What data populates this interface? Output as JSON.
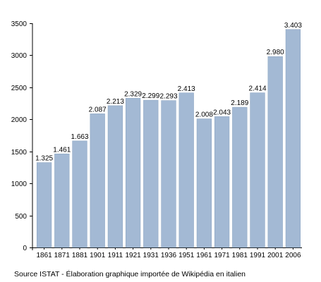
{
  "chart_data": {
    "type": "bar",
    "categories": [
      "1861",
      "1871",
      "1881",
      "1901",
      "1911",
      "1921",
      "1931",
      "1936",
      "1951",
      "1961",
      "1971",
      "1981",
      "1991",
      "2001",
      "2006"
    ],
    "values": [
      1325,
      1461,
      1663,
      2087,
      2213,
      2329,
      2299,
      2293,
      2413,
      2008,
      2043,
      2189,
      2414,
      2980,
      3403
    ],
    "value_labels": [
      "1.325",
      "1.461",
      "1.663",
      "2.087",
      "2.213",
      "2.329",
      "2.299",
      "2.293",
      "2.413",
      "2.008",
      "2.043",
      "2.189",
      "2.414",
      "2.980",
      "3.403"
    ],
    "y_ticks": [
      0,
      500,
      1000,
      1500,
      2000,
      2500,
      3000,
      3500
    ],
    "ylim": [
      0,
      3500
    ],
    "title": "",
    "xlabel": "",
    "ylabel": "",
    "grid": false,
    "legend": "none",
    "bar_color": "#a3b9d4",
    "bar_edge_color": "#8ea7c4"
  },
  "footer": {
    "source_text": "Source ISTAT - Élaboration graphique importée de Wikipédia en italien"
  }
}
